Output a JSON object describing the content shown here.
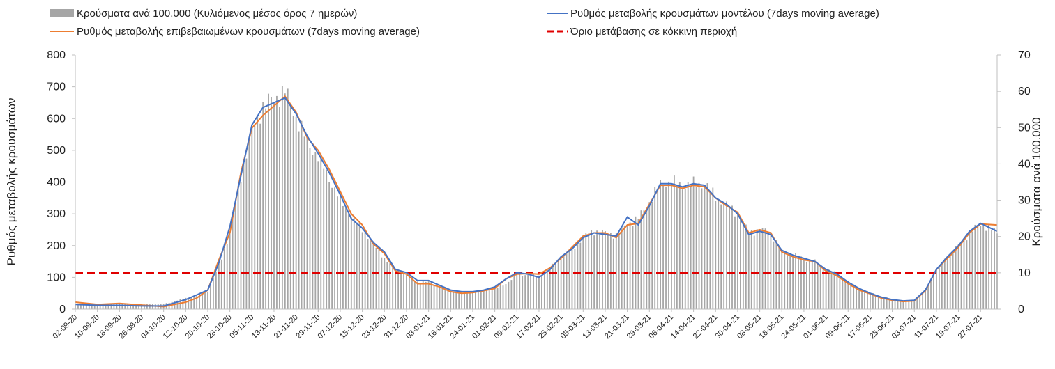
{
  "chart_data": {
    "type": "bar+line",
    "title": "",
    "legend": [
      {
        "name": "Κρούσματα ανά 100.000 (Κυλιόμενος μέσος όρος 7 ημερών)",
        "kind": "bar",
        "color": "#a6a6a6"
      },
      {
        "name": "Ρυθμός μεταβολής κρουσμάτων μοντέλου (7days moving average)",
        "kind": "line",
        "color": "#4472c4"
      },
      {
        "name": "Ρυθμός μεταβολής επιβεβαιωμένων κρουσμάτων (7days moving average)",
        "kind": "line",
        "color": "#ed7d31"
      },
      {
        "name": "Όριο μετάβασης σε κόκκινη περιοχή",
        "kind": "dashed",
        "color": "#e00000"
      }
    ],
    "legend_position": "top",
    "ylabel_left": "Ρυθμός μεταβολής κρουσμάτων",
    "ylabel_right": "Κρούσματα ανά 100.000",
    "ylim_left": [
      0,
      800
    ],
    "ylim_right": [
      0,
      70
    ],
    "yticks_left": [
      "0",
      "100",
      "200",
      "300",
      "400",
      "500",
      "600",
      "700",
      "800"
    ],
    "yticks_right": [
      "0",
      "10",
      "20",
      "30",
      "40",
      "50",
      "60",
      "70"
    ],
    "x_start": "2020-09-02",
    "x_end": "2021-08-02",
    "x_tick_labels": [
      "02-09-20",
      "10-09-20",
      "18-09-20",
      "26-09-20",
      "04-10-20",
      "12-10-20",
      "20-10-20",
      "28-10-20",
      "05-11-20",
      "13-11-20",
      "21-11-20",
      "29-11-20",
      "07-12-20",
      "15-12-20",
      "23-12-20",
      "31-12-20",
      "08-01-21",
      "16-01-21",
      "24-01-21",
      "01-02-21",
      "09-02-21",
      "17-02-21",
      "25-02-21",
      "05-03-21",
      "13-03-21",
      "21-03-21",
      "29-03-21",
      "06-04-21",
      "14-04-21",
      "22-04-21",
      "30-04-21",
      "08-05-21",
      "16-05-21",
      "24-05-21",
      "01-06-21",
      "09-06-21",
      "17-06-21",
      "25-06-21",
      "03-07-21",
      "11-07-21",
      "19-07-21",
      "27-07-21"
    ],
    "threshold_left": 113,
    "bars_right_axis": [
      [
        "2020-09-02",
        1.2
      ],
      [
        "2020-09-10",
        1.4
      ],
      [
        "2020-09-18",
        1.6
      ],
      [
        "2020-09-26",
        1.3
      ],
      [
        "2020-10-04",
        1.4
      ],
      [
        "2020-10-12",
        3
      ],
      [
        "2020-10-16",
        4
      ],
      [
        "2020-10-20",
        5
      ],
      [
        "2020-10-24",
        12
      ],
      [
        "2020-10-28",
        21
      ],
      [
        "2020-11-01",
        37
      ],
      [
        "2020-11-05",
        49
      ],
      [
        "2020-11-09",
        56
      ],
      [
        "2020-11-13",
        58
      ],
      [
        "2020-11-17",
        60
      ],
      [
        "2020-11-21",
        53
      ],
      [
        "2020-11-25",
        46
      ],
      [
        "2020-11-29",
        42
      ],
      [
        "2020-12-03",
        36
      ],
      [
        "2020-12-07",
        30
      ],
      [
        "2020-12-11",
        26
      ],
      [
        "2020-12-15",
        22
      ],
      [
        "2020-12-19",
        18
      ],
      [
        "2020-12-23",
        14
      ],
      [
        "2020-12-27",
        11
      ],
      [
        "2020-12-31",
        9.5
      ],
      [
        "2021-01-04",
        7.5
      ],
      [
        "2021-01-08",
        7.5
      ],
      [
        "2021-01-12",
        6.5
      ],
      [
        "2021-01-16",
        5
      ],
      [
        "2021-01-20",
        4.6
      ],
      [
        "2021-01-24",
        4.8
      ],
      [
        "2021-01-28",
        5
      ],
      [
        "2021-02-01",
        5.5
      ],
      [
        "2021-02-05",
        7
      ],
      [
        "2021-02-09",
        9.5
      ],
      [
        "2021-02-13",
        9.5
      ],
      [
        "2021-02-17",
        9
      ],
      [
        "2021-02-21",
        11
      ],
      [
        "2021-02-25",
        14.5
      ],
      [
        "2021-03-01",
        16.5
      ],
      [
        "2021-03-05",
        20
      ],
      [
        "2021-03-09",
        21.5
      ],
      [
        "2021-03-13",
        21
      ],
      [
        "2021-03-17",
        20.5
      ],
      [
        "2021-03-21",
        23.5
      ],
      [
        "2021-03-25",
        25
      ],
      [
        "2021-03-29",
        29.5
      ],
      [
        "2021-04-02",
        34.5
      ],
      [
        "2021-04-06",
        35
      ],
      [
        "2021-04-10",
        34
      ],
      [
        "2021-04-14",
        34.5
      ],
      [
        "2021-04-18",
        34.5
      ],
      [
        "2021-04-22",
        31
      ],
      [
        "2021-04-26",
        28.5
      ],
      [
        "2021-04-30",
        26.5
      ],
      [
        "2021-05-04",
        21
      ],
      [
        "2021-05-08",
        22
      ],
      [
        "2021-05-12",
        21
      ],
      [
        "2021-05-16",
        16
      ],
      [
        "2021-05-20",
        15
      ],
      [
        "2021-05-24",
        14
      ],
      [
        "2021-05-28",
        13
      ],
      [
        "2021-06-01",
        11
      ],
      [
        "2021-06-05",
        9.5
      ],
      [
        "2021-06-09",
        7.5
      ],
      [
        "2021-06-13",
        5.5
      ],
      [
        "2021-06-17",
        4.5
      ],
      [
        "2021-06-21",
        3.5
      ],
      [
        "2021-06-25",
        2.8
      ],
      [
        "2021-06-29",
        2.3
      ],
      [
        "2021-07-03",
        2.2
      ],
      [
        "2021-07-07",
        5.5
      ],
      [
        "2021-07-11",
        11
      ],
      [
        "2021-07-15",
        14.5
      ],
      [
        "2021-07-19",
        17.5
      ],
      [
        "2021-07-23",
        21
      ],
      [
        "2021-07-27",
        23.5
      ],
      [
        "2021-08-02",
        21
      ]
    ],
    "series": [
      {
        "name": "Ρυθμός μεταβολής κρουσμάτων μοντέλου (7days moving average)",
        "axis": "left",
        "points": [
          [
            "2020-09-02",
            15
          ],
          [
            "2020-09-10",
            12
          ],
          [
            "2020-09-18",
            12
          ],
          [
            "2020-09-26",
            10
          ],
          [
            "2020-10-04",
            10
          ],
          [
            "2020-10-12",
            30
          ],
          [
            "2020-10-16",
            45
          ],
          [
            "2020-10-20",
            60
          ],
          [
            "2020-10-24",
            145
          ],
          [
            "2020-10-28",
            260
          ],
          [
            "2020-11-01",
            420
          ],
          [
            "2020-11-05",
            580
          ],
          [
            "2020-11-09",
            635
          ],
          [
            "2020-11-13",
            650
          ],
          [
            "2020-11-17",
            665
          ],
          [
            "2020-11-21",
            615
          ],
          [
            "2020-11-25",
            545
          ],
          [
            "2020-11-29",
            490
          ],
          [
            "2020-12-03",
            430
          ],
          [
            "2020-12-07",
            360
          ],
          [
            "2020-12-11",
            285
          ],
          [
            "2020-12-15",
            255
          ],
          [
            "2020-12-19",
            210
          ],
          [
            "2020-12-23",
            180
          ],
          [
            "2020-12-27",
            125
          ],
          [
            "2020-12-31",
            115
          ],
          [
            "2021-01-04",
            90
          ],
          [
            "2021-01-08",
            90
          ],
          [
            "2021-01-12",
            75
          ],
          [
            "2021-01-16",
            60
          ],
          [
            "2021-01-20",
            55
          ],
          [
            "2021-01-24",
            55
          ],
          [
            "2021-01-28",
            60
          ],
          [
            "2021-02-01",
            70
          ],
          [
            "2021-02-05",
            95
          ],
          [
            "2021-02-09",
            115
          ],
          [
            "2021-02-13",
            110
          ],
          [
            "2021-02-17",
            100
          ],
          [
            "2021-02-21",
            125
          ],
          [
            "2021-02-25",
            165
          ],
          [
            "2021-03-01",
            190
          ],
          [
            "2021-03-05",
            225
          ],
          [
            "2021-03-09",
            240
          ],
          [
            "2021-03-13",
            235
          ],
          [
            "2021-03-17",
            230
          ],
          [
            "2021-03-21",
            290
          ],
          [
            "2021-03-25",
            265
          ],
          [
            "2021-03-29",
            325
          ],
          [
            "2021-04-02",
            395
          ],
          [
            "2021-04-06",
            395
          ],
          [
            "2021-04-10",
            385
          ],
          [
            "2021-04-14",
            395
          ],
          [
            "2021-04-18",
            390
          ],
          [
            "2021-04-22",
            350
          ],
          [
            "2021-04-26",
            330
          ],
          [
            "2021-04-30",
            300
          ],
          [
            "2021-05-04",
            235
          ],
          [
            "2021-05-08",
            245
          ],
          [
            "2021-05-12",
            235
          ],
          [
            "2021-05-16",
            185
          ],
          [
            "2021-05-20",
            170
          ],
          [
            "2021-05-24",
            160
          ],
          [
            "2021-05-28",
            150
          ],
          [
            "2021-06-01",
            125
          ],
          [
            "2021-06-05",
            110
          ],
          [
            "2021-06-09",
            85
          ],
          [
            "2021-06-13",
            65
          ],
          [
            "2021-06-17",
            50
          ],
          [
            "2021-06-21",
            38
          ],
          [
            "2021-06-25",
            30
          ],
          [
            "2021-06-29",
            26
          ],
          [
            "2021-07-03",
            28
          ],
          [
            "2021-07-07",
            60
          ],
          [
            "2021-07-11",
            125
          ],
          [
            "2021-07-15",
            165
          ],
          [
            "2021-07-19",
            200
          ],
          [
            "2021-07-23",
            245
          ],
          [
            "2021-07-27",
            270
          ],
          [
            "2021-08-02",
            245
          ]
        ]
      },
      {
        "name": "Ρυθμός μεταβολής επιβεβαιωμένων κρουσμάτων (7days moving average)",
        "axis": "left",
        "points": [
          [
            "2020-09-02",
            22
          ],
          [
            "2020-09-10",
            15
          ],
          [
            "2020-09-18",
            18
          ],
          [
            "2020-09-26",
            13
          ],
          [
            "2020-10-04",
            8
          ],
          [
            "2020-10-12",
            22
          ],
          [
            "2020-10-16",
            35
          ],
          [
            "2020-10-20",
            60
          ],
          [
            "2020-10-24",
            155
          ],
          [
            "2020-10-28",
            240
          ],
          [
            "2020-11-01",
            430
          ],
          [
            "2020-11-05",
            570
          ],
          [
            "2020-11-09",
            610
          ],
          [
            "2020-11-13",
            640
          ],
          [
            "2020-11-17",
            670
          ],
          [
            "2020-11-21",
            620
          ],
          [
            "2020-11-25",
            540
          ],
          [
            "2020-11-29",
            500
          ],
          [
            "2020-12-03",
            440
          ],
          [
            "2020-12-07",
            370
          ],
          [
            "2020-12-11",
            300
          ],
          [
            "2020-12-15",
            265
          ],
          [
            "2020-12-19",
            205
          ],
          [
            "2020-12-23",
            175
          ],
          [
            "2020-12-27",
            120
          ],
          [
            "2020-12-31",
            110
          ],
          [
            "2021-01-04",
            80
          ],
          [
            "2021-01-08",
            80
          ],
          [
            "2021-01-12",
            70
          ],
          [
            "2021-01-16",
            55
          ],
          [
            "2021-01-20",
            50
          ],
          [
            "2021-01-24",
            52
          ],
          [
            "2021-01-28",
            58
          ],
          [
            "2021-02-01",
            65
          ],
          [
            "2021-02-05",
            95
          ],
          [
            "2021-02-09",
            110
          ],
          [
            "2021-02-13",
            112
          ],
          [
            "2021-02-17",
            110
          ],
          [
            "2021-02-21",
            130
          ],
          [
            "2021-02-25",
            160
          ],
          [
            "2021-03-01",
            195
          ],
          [
            "2021-03-05",
            230
          ],
          [
            "2021-03-09",
            240
          ],
          [
            "2021-03-13",
            240
          ],
          [
            "2021-03-17",
            225
          ],
          [
            "2021-03-21",
            265
          ],
          [
            "2021-03-25",
            270
          ],
          [
            "2021-03-29",
            330
          ],
          [
            "2021-04-02",
            390
          ],
          [
            "2021-04-06",
            390
          ],
          [
            "2021-04-10",
            380
          ],
          [
            "2021-04-14",
            390
          ],
          [
            "2021-04-18",
            385
          ],
          [
            "2021-04-22",
            350
          ],
          [
            "2021-04-26",
            325
          ],
          [
            "2021-04-30",
            305
          ],
          [
            "2021-05-04",
            240
          ],
          [
            "2021-05-08",
            250
          ],
          [
            "2021-05-12",
            240
          ],
          [
            "2021-05-16",
            180
          ],
          [
            "2021-05-20",
            165
          ],
          [
            "2021-05-24",
            155
          ],
          [
            "2021-05-28",
            150
          ],
          [
            "2021-06-01",
            120
          ],
          [
            "2021-06-05",
            105
          ],
          [
            "2021-06-09",
            80
          ],
          [
            "2021-06-13",
            60
          ],
          [
            "2021-06-17",
            48
          ],
          [
            "2021-06-21",
            35
          ],
          [
            "2021-06-25",
            28
          ],
          [
            "2021-06-29",
            24
          ],
          [
            "2021-07-03",
            26
          ],
          [
            "2021-07-07",
            58
          ],
          [
            "2021-07-11",
            125
          ],
          [
            "2021-07-15",
            160
          ],
          [
            "2021-07-19",
            195
          ],
          [
            "2021-07-23",
            240
          ],
          [
            "2021-07-27",
            268
          ],
          [
            "2021-08-02",
            265
          ]
        ]
      }
    ]
  }
}
